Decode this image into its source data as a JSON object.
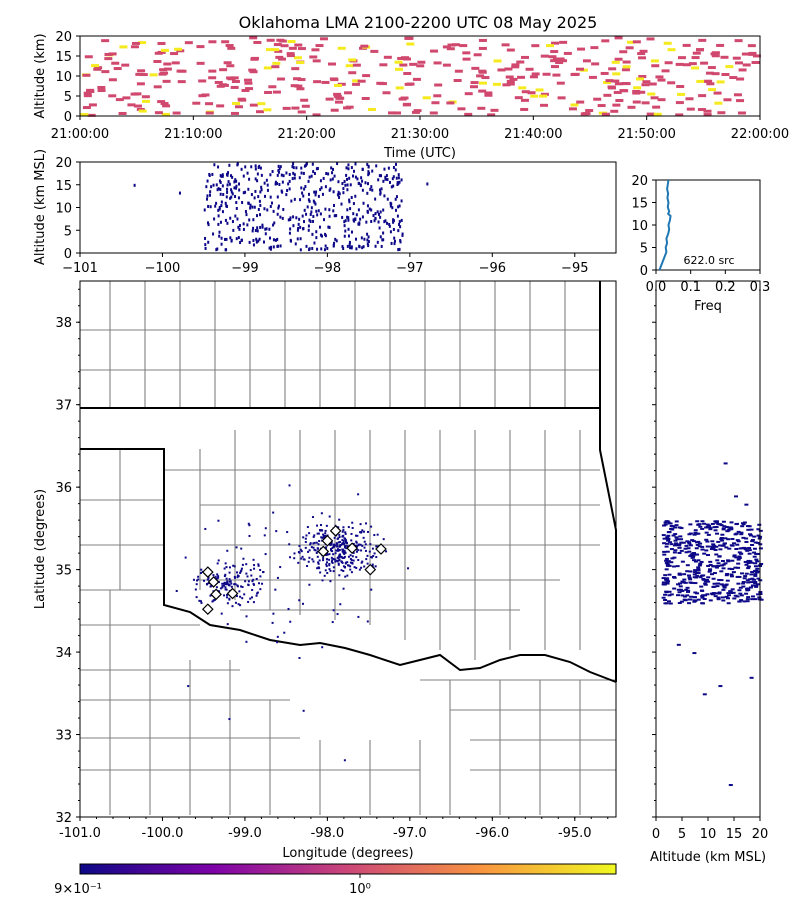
{
  "chart_data": {
    "type": "scatter",
    "title": "Oklahoma LMA 2100-2200 UTC 08 May 2025",
    "colors": {
      "point": "#0d0887",
      "freq_line": "#1f77b4",
      "hist_magenta": "#d0486e",
      "hist_yellow": "#f5ea1e",
      "state_border": "#000000",
      "county_border": "#808080",
      "station": "#000000"
    },
    "time_panel": {
      "ylabel": "Altitude (km)",
      "xlabel": "Time (UTC)",
      "yticks": [
        "0",
        "5",
        "10",
        "15",
        "20"
      ],
      "xticks": [
        "21:00:00",
        "21:10:00",
        "21:20:00",
        "21:30:00",
        "21:40:00",
        "21:50:00",
        "22:00:00"
      ],
      "xlim_minutes": [
        0,
        60
      ],
      "ylim": [
        0,
        20
      ]
    },
    "lon_alt_panel": {
      "ylabel": "Altitude (km MSL)",
      "yticks": [
        "0",
        "5",
        "10",
        "15",
        "20"
      ],
      "xticks": [
        "−101",
        "−100",
        "−99",
        "−98",
        "−97",
        "−96",
        "−95"
      ],
      "xlim": [
        -101.0,
        -94.5
      ],
      "ylim": [
        0,
        20
      ]
    },
    "freq_panel": {
      "xlabel": "Freq",
      "xticks": [
        "0.0",
        "0.1",
        "0.2",
        "0.3"
      ],
      "yticks": [
        "0",
        "5",
        "10",
        "15",
        "20"
      ],
      "xlim": [
        0,
        0.3
      ],
      "ylim": [
        0,
        20
      ],
      "count_label": "622.0 src",
      "profile": [
        [
          0.01,
          0
        ],
        [
          0.015,
          1
        ],
        [
          0.02,
          2
        ],
        [
          0.025,
          3
        ],
        [
          0.03,
          4
        ],
        [
          0.028,
          5
        ],
        [
          0.032,
          6
        ],
        [
          0.03,
          7
        ],
        [
          0.035,
          8
        ],
        [
          0.038,
          9
        ],
        [
          0.036,
          10
        ],
        [
          0.04,
          11
        ],
        [
          0.042,
          12
        ],
        [
          0.035,
          12.5
        ],
        [
          0.038,
          13
        ],
        [
          0.034,
          14
        ],
        [
          0.036,
          15
        ],
        [
          0.033,
          16
        ],
        [
          0.035,
          17
        ],
        [
          0.032,
          18
        ],
        [
          0.034,
          19
        ],
        [
          0.036,
          20
        ]
      ]
    },
    "map_panel": {
      "xlabel": "Longitude (degrees)",
      "ylabel": "Latitude (degrees)",
      "xticks": [
        "-101.0",
        "-100.0",
        "-99.0",
        "-98.0",
        "-97.0",
        "-96.0",
        "-95.0"
      ],
      "yticks": [
        "32",
        "33",
        "34",
        "35",
        "36",
        "37",
        "38"
      ],
      "xlim": [
        -101.0,
        -94.5
      ],
      "ylim": [
        32.0,
        38.5
      ],
      "stations": [
        {
          "lon": -99.45,
          "lat": 34.97
        },
        {
          "lon": -99.38,
          "lat": 34.85
        },
        {
          "lon": -99.35,
          "lat": 34.7
        },
        {
          "lon": -99.45,
          "lat": 34.52
        },
        {
          "lon": -99.15,
          "lat": 34.71
        },
        {
          "lon": -98.05,
          "lat": 35.22
        },
        {
          "lon": -97.9,
          "lat": 35.47
        },
        {
          "lon": -97.7,
          "lat": 35.26
        },
        {
          "lon": -97.48,
          "lat": 35.0
        },
        {
          "lon": -97.35,
          "lat": 35.25
        },
        {
          "lon": -98.0,
          "lat": 35.35
        }
      ]
    },
    "lat_alt_panel": {
      "xlabel": "Altitude (km MSL)",
      "xticks": [
        "0",
        "5",
        "10",
        "15",
        "20"
      ],
      "xlim": [
        0,
        20
      ]
    },
    "colorbar": {
      "tick_left": "9×10⁻¹",
      "tick_mid": "10⁰",
      "colormap": "plasma"
    }
  }
}
